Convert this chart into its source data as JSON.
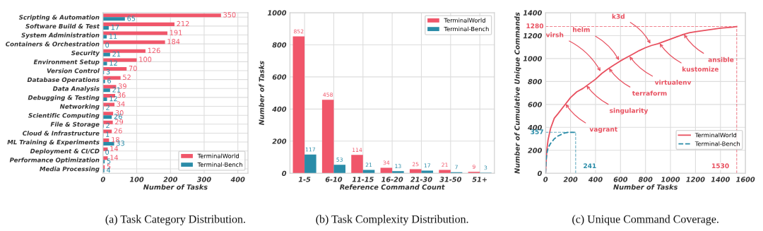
{
  "chart_data": [
    {
      "type": "bar",
      "orientation": "horizontal",
      "title": "(a) Task Category Distribution.",
      "xlabel": "Number of Tasks",
      "categories": [
        "Scripting & Automation",
        "Software Build & Test",
        "System Administration",
        "Containers & Orchestration",
        "Security",
        "Environment Setup",
        "Version Control",
        "Database Operations",
        "Data Analysis",
        "Debugging & Testing",
        "Networking",
        "Scientific Computing",
        "File & Storage",
        "Cloud & Infrastructure",
        "ML Training & Experiments",
        "Deployment & CI/CD",
        "Performance Optimization",
        "Media Processing"
      ],
      "series": [
        {
          "name": "TerminalWorld",
          "color": "#f0566a",
          "values": [
            350,
            212,
            191,
            184,
            126,
            100,
            70,
            52,
            39,
            36,
            34,
            30,
            29,
            26,
            18,
            14,
            14,
            5
          ]
        },
        {
          "name": "Terminal-Bench",
          "color": "#2a8ca8",
          "values": [
            65,
            17,
            11,
            0,
            21,
            12,
            3,
            6,
            21,
            12,
            2,
            26,
            2,
            1,
            33,
            0,
            5,
            4
          ]
        }
      ],
      "xlim": [
        0,
        430
      ],
      "xticks": [
        0,
        100,
        200,
        300,
        400
      ],
      "data_labels": true,
      "grid": true,
      "legend": "bottom right"
    },
    {
      "type": "bar",
      "title": "(b) Task Complexity Distribution.",
      "xlabel": "Reference Command Count",
      "ylabel": "Number of Tasks",
      "categories": [
        "1-5",
        "6-10",
        "11-15",
        "16-20",
        "21-30",
        "31-50",
        "51+"
      ],
      "series": [
        {
          "name": "TerminalWorld",
          "color": "#f0566a",
          "values": [
            852,
            458,
            114,
            34,
            25,
            21,
            9
          ]
        },
        {
          "name": "Terminal-Bench",
          "color": "#2a8ca8",
          "values": [
            117,
            53,
            21,
            13,
            17,
            7,
            3
          ]
        }
      ],
      "ylim": [
        0,
        1000
      ],
      "yticks": [
        0,
        200,
        400,
        600,
        800,
        1000
      ],
      "data_labels": true,
      "grid": true,
      "legend": "top right"
    },
    {
      "type": "line",
      "title": "(c) Unique Command Coverage.",
      "xlabel": "Number of Tasks",
      "ylabel": "Number of Cumulative Unique Commands",
      "series": [
        {
          "name": "TerminalWorld",
          "color": "#e8505f",
          "line_style": "solid",
          "x": [
            0,
            5,
            10,
            20,
            40,
            70,
            100,
            150,
            200,
            250,
            300,
            350,
            400,
            450,
            500,
            550,
            600,
            650,
            700,
            750,
            800,
            850,
            900,
            950,
            1000,
            1050,
            1100,
            1150,
            1200,
            1300,
            1400,
            1500,
            1530
          ],
          "values": [
            0,
            100,
            200,
            290,
            390,
            480,
            520,
            590,
            660,
            710,
            740,
            780,
            820,
            870,
            910,
            945,
            980,
            1010,
            1040,
            1070,
            1095,
            1115,
            1130,
            1150,
            1170,
            1190,
            1210,
            1225,
            1235,
            1250,
            1265,
            1275,
            1280
          ]
        },
        {
          "name": "Terminal-Bench",
          "color": "#2a8ca8",
          "line_style": "dashed",
          "x": [
            0,
            5,
            10,
            20,
            40,
            70,
            100,
            150,
            180,
            241
          ],
          "values": [
            0,
            120,
            170,
            220,
            260,
            300,
            325,
            350,
            357,
            357
          ]
        }
      ],
      "xlim": [
        0,
        1600
      ],
      "xticks": [
        0,
        200,
        400,
        600,
        800,
        1000,
        1200,
        1400,
        1600
      ],
      "ylim": [
        0,
        1400
      ],
      "yticks": [
        0,
        200,
        400,
        600,
        800,
        1000,
        1200,
        1400
      ],
      "ref_lines": [
        {
          "axis": "y",
          "value": 1280,
          "label": "1280",
          "color": "#e8505f",
          "line_style": "dashed"
        },
        {
          "axis": "x",
          "value": 1530,
          "label": "1530",
          "color": "#e8505f",
          "line_style": "dashed"
        },
        {
          "axis": "y",
          "value": 357,
          "label": "357",
          "color": "#2a8ca8",
          "line_style": "dashed"
        },
        {
          "axis": "x",
          "value": 241,
          "label": "241",
          "color": "#2a8ca8",
          "line_style": "dashed"
        }
      ],
      "annotations": [
        {
          "text": "virsh",
          "x": 440,
          "y": 889
        },
        {
          "text": "helm",
          "x": 588,
          "y": 986
        },
        {
          "text": "k3d",
          "x": 839,
          "y": 1130
        },
        {
          "text": "ansible",
          "x": 1108,
          "y": 1212
        },
        {
          "text": "kustomize",
          "x": 913,
          "y": 1132
        },
        {
          "text": "virtualenv",
          "x": 672,
          "y": 1019
        },
        {
          "text": "terraform",
          "x": 508,
          "y": 915
        },
        {
          "text": "singularity",
          "x": 328,
          "y": 765
        },
        {
          "text": "vagrant",
          "x": 161,
          "y": 604
        }
      ],
      "grid": true,
      "legend": "bottom right"
    }
  ]
}
